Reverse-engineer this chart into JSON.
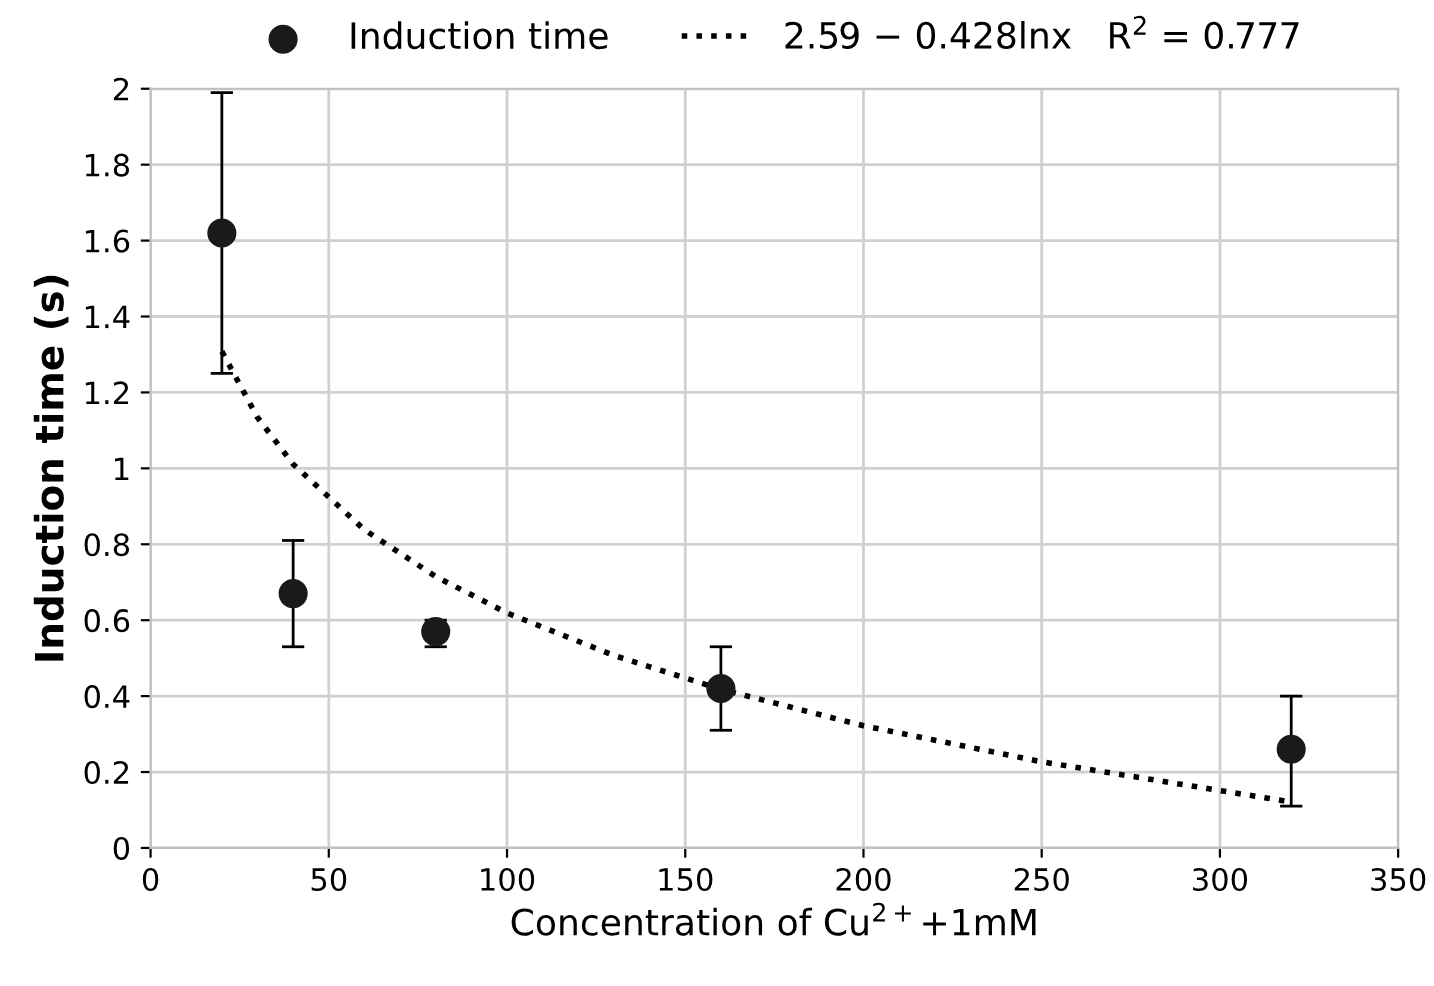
{
  "chart_data": {
    "type": "scatter",
    "xlabel": "Concentration of Cu$^{2+}$+1mM",
    "ylabel": "Induction time (s)",
    "x": [
      20,
      40,
      80,
      160,
      320
    ],
    "series": [
      {
        "name": "Induction time",
        "color": "#1a1a1a",
        "marker": "circle",
        "values": [
          1.62,
          0.67,
          0.57,
          0.42,
          0.26
        ],
        "errors": [
          [
            1.25,
            1.99
          ],
          [
            0.53,
            0.81
          ],
          [
            0.53,
            0.6
          ],
          [
            0.31,
            0.53
          ],
          [
            0.11,
            0.4
          ]
        ]
      },
      {
        "name": "2.59 − 0.428lnx   R$^{2}$ = 0.777",
        "type": "line",
        "color": "#000000",
        "line_style": "dotted",
        "marker": "none",
        "x": [
          20,
          30,
          40,
          60,
          80,
          100,
          130,
          160,
          200,
          250,
          320
        ],
        "values": [
          1.308,
          1.134,
          1.011,
          0.838,
          0.715,
          0.619,
          0.507,
          0.418,
          0.322,
          0.227,
          0.121
        ]
      }
    ],
    "xlim": [
      0,
      350
    ],
    "xticks": [
      0,
      50,
      100,
      150,
      200,
      250,
      300,
      350
    ],
    "ylim": [
      0,
      2
    ],
    "yticks": [
      0,
      0.2,
      0.4,
      0.6,
      0.8,
      1,
      1.2,
      1.4,
      1.6,
      1.8,
      2
    ],
    "grid": true,
    "legend": "top"
  }
}
